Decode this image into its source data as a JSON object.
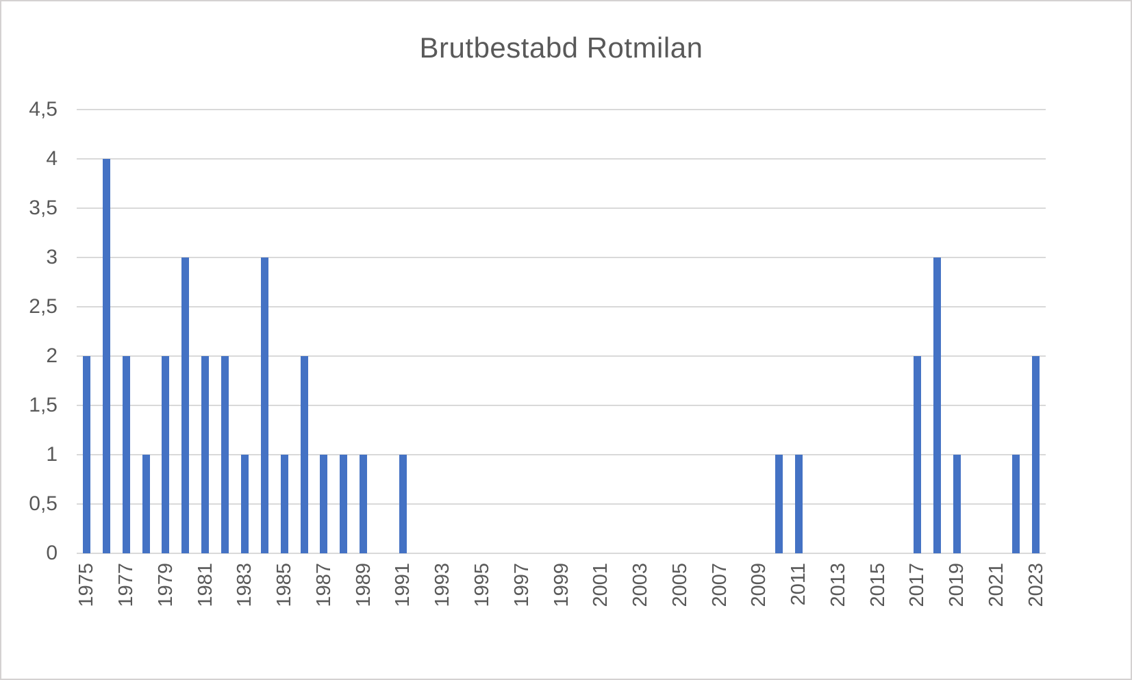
{
  "chart_data": {
    "type": "bar",
    "title": "Brutbestabd Rotmilan",
    "xlabel": "",
    "ylabel": "",
    "categories": [
      "1975",
      "1976",
      "1977",
      "1978",
      "1979",
      "1980",
      "1981",
      "1982",
      "1983",
      "1984",
      "1985",
      "1986",
      "1987",
      "1988",
      "1989",
      "1990",
      "1991",
      "1992",
      "1993",
      "1994",
      "1995",
      "1996",
      "1997",
      "1998",
      "1999",
      "2000",
      "2001",
      "2002",
      "2003",
      "2004",
      "2005",
      "2006",
      "2007",
      "2008",
      "2009",
      "2010",
      "2011",
      "2012",
      "2013",
      "2014",
      "2015",
      "2016",
      "2017",
      "2018",
      "2019",
      "2020",
      "2021",
      "2022",
      "2023"
    ],
    "values": [
      2,
      4,
      2,
      1,
      2,
      3,
      2,
      2,
      1,
      3,
      1,
      2,
      1,
      1,
      1,
      0,
      1,
      0,
      0,
      0,
      0,
      0,
      0,
      0,
      0,
      0,
      0,
      0,
      0,
      0,
      0,
      0,
      0,
      0,
      0,
      1,
      1,
      0,
      0,
      0,
      0,
      0,
      2,
      3,
      1,
      0,
      0,
      1,
      2
    ],
    "ylim": [
      0,
      4.5
    ],
    "y_tick_values": [
      0,
      0.5,
      1,
      1.5,
      2,
      2.5,
      3,
      3.5,
      4,
      4.5
    ],
    "y_tick_labels": [
      "0",
      "0,5",
      "1",
      "1,5",
      "2",
      "2,5",
      "3",
      "3,5",
      "4",
      "4,5"
    ],
    "x_tick_labels": [
      "1975",
      "1977",
      "1979",
      "1981",
      "1983",
      "1985",
      "1987",
      "1989",
      "1991",
      "1993",
      "1995",
      "1997",
      "1999",
      "2001",
      "2003",
      "2005",
      "2007",
      "2009",
      "2011",
      "2013",
      "2015",
      "2017",
      "2019",
      "2021",
      "2023"
    ],
    "x_label_interval": 2,
    "grid": true,
    "legend": false,
    "bar_color": "#4472c4",
    "gridline_color": "#d9d9d9",
    "text_color": "#595959",
    "background_color": "#ffffff",
    "border_color": "#d4d1d1"
  }
}
